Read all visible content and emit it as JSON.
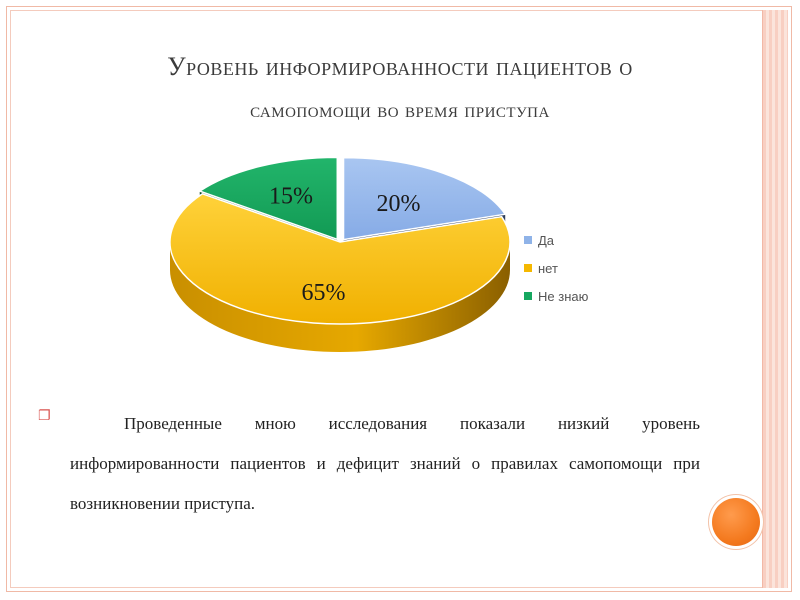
{
  "title": {
    "line1": "Уровень информированности пациентов о",
    "line2": "самопомощи во время приступа"
  },
  "chart_data": {
    "type": "pie",
    "categories": [
      "Да",
      "нет",
      "Не знаю"
    ],
    "values": [
      20,
      65,
      15
    ],
    "data_labels": [
      "20%",
      "65%",
      "15%"
    ],
    "colors": [
      "#8fb3e8",
      "#f5b800",
      "#16a760"
    ],
    "legend": {
      "placement": "right",
      "entries": [
        "Да",
        "нет",
        "Не знаю"
      ]
    }
  },
  "body": {
    "text": "Проведенные мною исследования показали низкий уровень информированности пациентов и дефицит знаний о правилах самопомощи при возникновении приступа."
  },
  "bullet_icon": "square-outline-icon"
}
